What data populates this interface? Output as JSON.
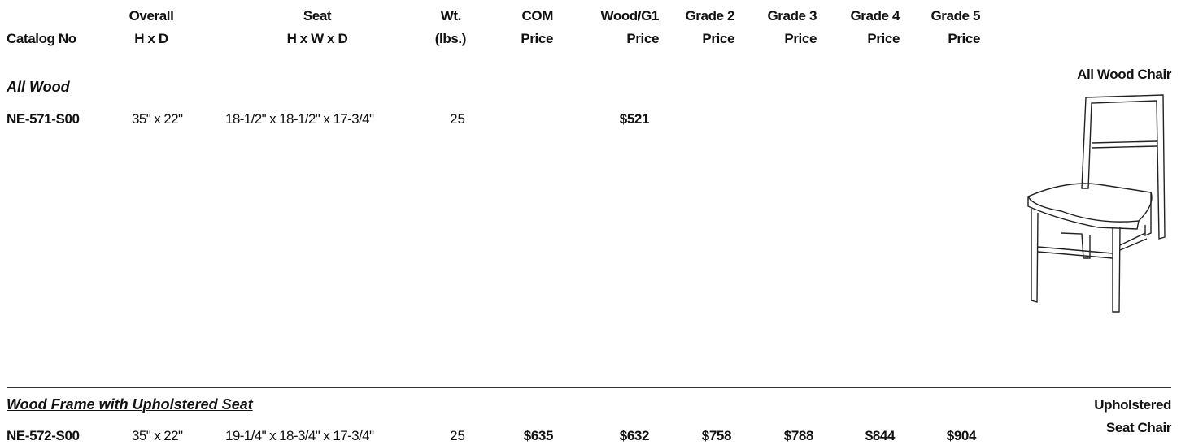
{
  "header": {
    "catalog": "Catalog No",
    "overall": [
      "Overall",
      "H x D"
    ],
    "seat": [
      "Seat",
      "H x W x D"
    ],
    "weight": [
      "Wt.",
      "(lbs.)"
    ],
    "com": [
      "COM",
      "Price"
    ],
    "wood_g1": [
      "Wood/G1",
      "Price"
    ],
    "grade2": [
      "Grade 2",
      "Price"
    ],
    "grade3": [
      "Grade 3",
      "Price"
    ],
    "grade4": [
      "Grade 4",
      "Price"
    ],
    "grade5": [
      "Grade 5",
      "Price"
    ]
  },
  "sections": [
    {
      "title": "All Wood",
      "image_label": [
        "All Wood Chair"
      ],
      "rows": [
        {
          "catalog": "NE-571-S00",
          "overall": "35\" x 22\"",
          "seat": "18-1/2\" x 18-1/2\" x 17-3/4\"",
          "weight": "25",
          "wood_g1": "$521"
        }
      ]
    },
    {
      "title": "Wood Frame with Upholstered Seat",
      "image_label": [
        "Upholstered",
        "Seat Chair"
      ],
      "rows": [
        {
          "catalog": "NE-572-S00",
          "overall": "35\" x 22\"",
          "seat": "19-1/4\" x 18-3/4\" x 17-3/4\"",
          "weight": "25",
          "com": "$635",
          "wood_g1": "$632",
          "grade2": "$758",
          "grade3": "$788",
          "grade4": "$844",
          "grade5": "$904"
        }
      ]
    }
  ]
}
